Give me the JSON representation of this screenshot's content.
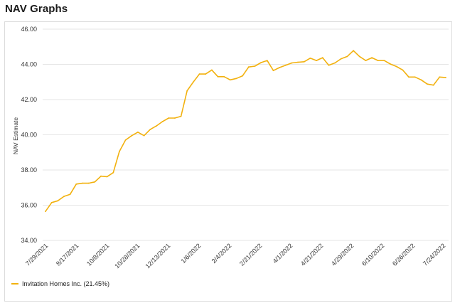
{
  "header": {
    "title": "NAV Graphs"
  },
  "chart_data": {
    "type": "line",
    "title": "",
    "xlabel": "",
    "ylabel": "NAV Estimate",
    "ylim": [
      34.0,
      46.0
    ],
    "yticks": [
      "34.00",
      "36.00",
      "38.00",
      "40.00",
      "42.00",
      "44.00",
      "46.00"
    ],
    "xticks": [
      "7/29/2021",
      "8/17/2021",
      "10/8/2021",
      "10/28/2021",
      "12/13/2021",
      "1/6/2022",
      "2/4/2022",
      "2/21/2022",
      "4/1/2022",
      "4/21/2022",
      "4/29/2022",
      "6/10/2022",
      "6/26/2022",
      "7/24/2022"
    ],
    "grid": "horizontal",
    "legend_position": "bottom-left",
    "color": "#f2b10e",
    "series": [
      {
        "name": "Invitation Homes Inc. (21.45%)",
        "values": [
          35.65,
          36.15,
          36.25,
          36.5,
          36.62,
          37.2,
          37.25,
          37.25,
          37.32,
          37.65,
          37.62,
          37.85,
          39.05,
          39.7,
          39.95,
          40.15,
          39.95,
          40.3,
          40.5,
          40.75,
          40.95,
          40.95,
          41.05,
          42.5,
          43.0,
          43.45,
          43.45,
          43.68,
          43.3,
          43.3,
          43.12,
          43.2,
          43.35,
          43.85,
          43.9,
          44.1,
          44.22,
          43.65,
          43.82,
          43.95,
          44.08,
          44.12,
          44.15,
          44.35,
          44.22,
          44.38,
          43.95,
          44.08,
          44.32,
          44.45,
          44.78,
          44.45,
          44.22,
          44.38,
          44.22,
          44.22,
          44.02,
          43.88,
          43.68,
          43.28,
          43.28,
          43.12,
          42.88,
          42.82,
          43.28,
          43.25
        ]
      }
    ]
  }
}
